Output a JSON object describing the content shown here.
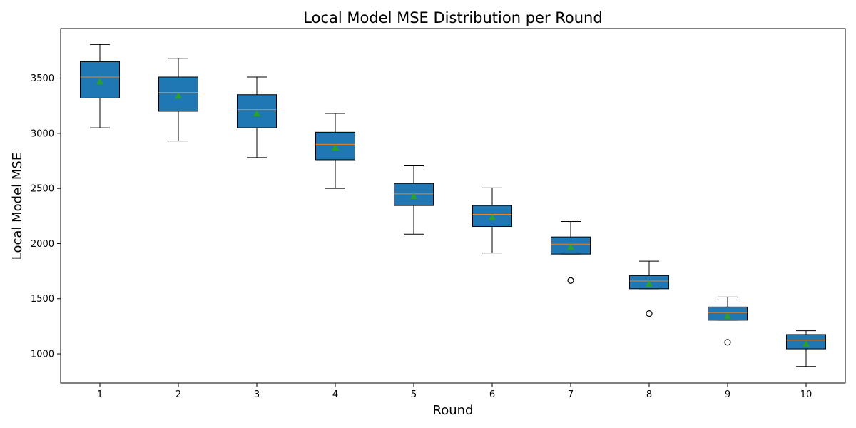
{
  "chart_data": {
    "type": "boxplot",
    "title": "Local Model MSE Distribution per Round",
    "xlabel": "Round",
    "ylabel": "Local Model MSE",
    "categories": [
      "1",
      "2",
      "3",
      "4",
      "5",
      "6",
      "7",
      "8",
      "9",
      "10"
    ],
    "ylim": [
      735,
      3950
    ],
    "yticks": [
      1000,
      1500,
      2000,
      2500,
      3000,
      3500
    ],
    "grid": false,
    "legend": "none",
    "colors": {
      "box_fill": "#1f77b4",
      "median": "#ff7f0e",
      "mean_marker": "#2ca02c",
      "outline": "#000000"
    },
    "boxes": [
      {
        "round": "1",
        "whisker_low": 3050,
        "q1": 3320,
        "median": 3510,
        "q3": 3650,
        "whisker_high": 3805,
        "mean": 3470,
        "outliers": []
      },
      {
        "round": "2",
        "whisker_low": 2930,
        "q1": 3200,
        "median": 3370,
        "q3": 3510,
        "whisker_high": 3680,
        "mean": 3340,
        "outliers": []
      },
      {
        "round": "3",
        "whisker_low": 2780,
        "q1": 3050,
        "median": 3215,
        "q3": 3350,
        "whisker_high": 3510,
        "mean": 3180,
        "outliers": []
      },
      {
        "round": "4",
        "whisker_low": 2500,
        "q1": 2760,
        "median": 2900,
        "q3": 3010,
        "whisker_high": 3180,
        "mean": 2870,
        "outliers": []
      },
      {
        "round": "5",
        "whisker_low": 2085,
        "q1": 2345,
        "median": 2450,
        "q3": 2545,
        "whisker_high": 2705,
        "mean": 2430,
        "outliers": []
      },
      {
        "round": "6",
        "whisker_low": 1915,
        "q1": 2155,
        "median": 2265,
        "q3": 2345,
        "whisker_high": 2505,
        "mean": 2240,
        "outliers": []
      },
      {
        "round": "7",
        "whisker_low": 1905,
        "q1": 1905,
        "median": 1995,
        "q3": 2060,
        "whisker_high": 2200,
        "mean": 1970,
        "outliers": [
          1665
        ]
      },
      {
        "round": "8",
        "whisker_low": 1590,
        "q1": 1590,
        "median": 1660,
        "q3": 1710,
        "whisker_high": 1840,
        "mean": 1635,
        "outliers": [
          1365
        ]
      },
      {
        "round": "9",
        "whisker_low": 1305,
        "q1": 1305,
        "median": 1375,
        "q3": 1425,
        "whisker_high": 1515,
        "mean": 1345,
        "outliers": [
          1105
        ]
      },
      {
        "round": "10",
        "whisker_low": 885,
        "q1": 1045,
        "median": 1125,
        "q3": 1175,
        "whisker_high": 1210,
        "mean": 1090,
        "outliers": []
      }
    ]
  }
}
